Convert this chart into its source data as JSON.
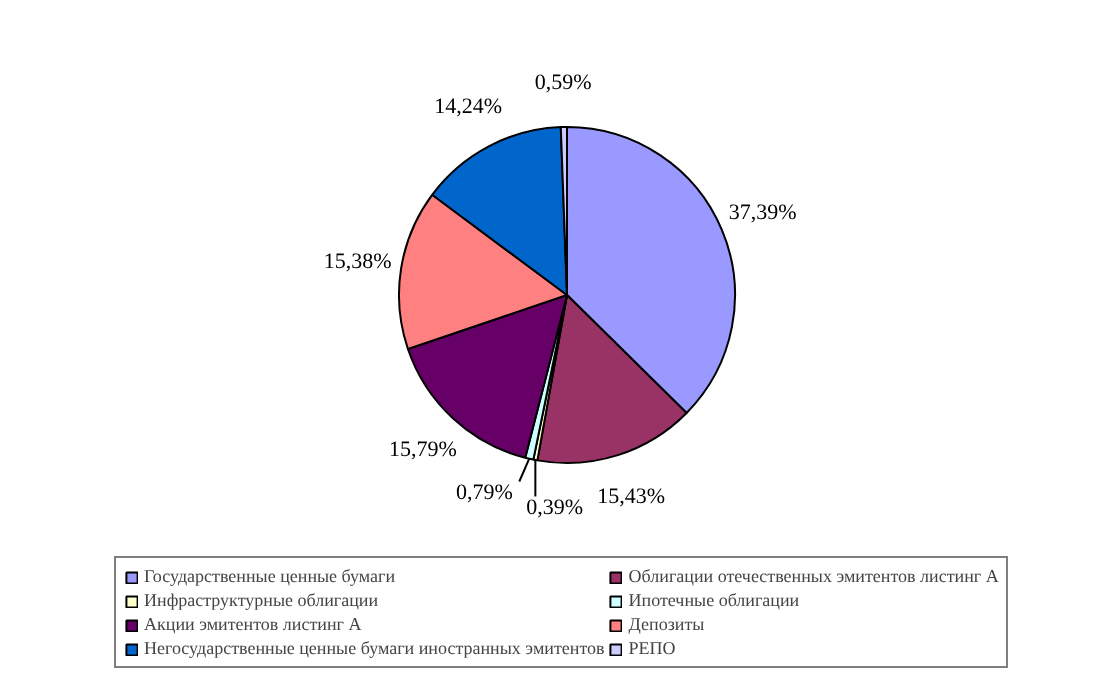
{
  "chart_data": {
    "type": "pie",
    "categories": [
      "Государственные ценные бумаги",
      "Облигации отечественных эмитентов листинг А",
      "Инфраструктурные облигации",
      "Ипотечные облигации",
      "Акции эмитентов листинг А",
      "Депозиты",
      "Негосударственные ценные бумаги иностранных эмитентов",
      "РЕПО"
    ],
    "values": [
      37.39,
      15.43,
      0.39,
      0.79,
      15.79,
      15.38,
      14.24,
      0.59
    ],
    "colors": [
      "#9999ff",
      "#993366",
      "#ffffcc",
      "#ccffff",
      "#660066",
      "#ff8080",
      "#0066cc",
      "#ccccff"
    ],
    "value_labels": [
      "37,39%",
      "15,43%",
      "0,39%",
      "0,79%",
      "15,79%",
      "15,38%",
      "14,24%",
      "0,59%"
    ],
    "legend": "bottom"
  }
}
